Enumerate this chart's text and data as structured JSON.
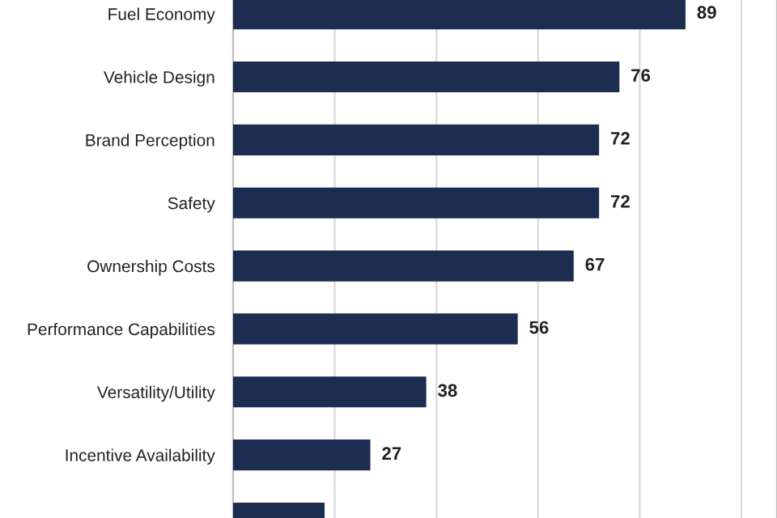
{
  "chart_data": {
    "type": "bar",
    "orientation": "horizontal",
    "categories": [
      "Fuel Economy",
      "Vehicle Design",
      "Brand Perception",
      "Safety",
      "Ownership Costs",
      "Performance Capabilities",
      "Versatility/Utility",
      "Incentive Availability",
      null
    ],
    "values": [
      89,
      76,
      72,
      72,
      67,
      56,
      38,
      27,
      18
    ],
    "value_labels": [
      "89",
      "76",
      "72",
      "72",
      "67",
      "56",
      "38",
      "27",
      null
    ],
    "color": "#1c2d4f",
    "xlim": [
      0,
      107
    ],
    "xticks": [
      {
        "value": 20,
        "label": null
      },
      {
        "value": 40,
        "label": null
      },
      {
        "value": 60,
        "label": null
      },
      {
        "value": 80,
        "label": null
      },
      {
        "value": 100,
        "label": null
      }
    ],
    "grid": "x",
    "tick_labels": "y"
  }
}
